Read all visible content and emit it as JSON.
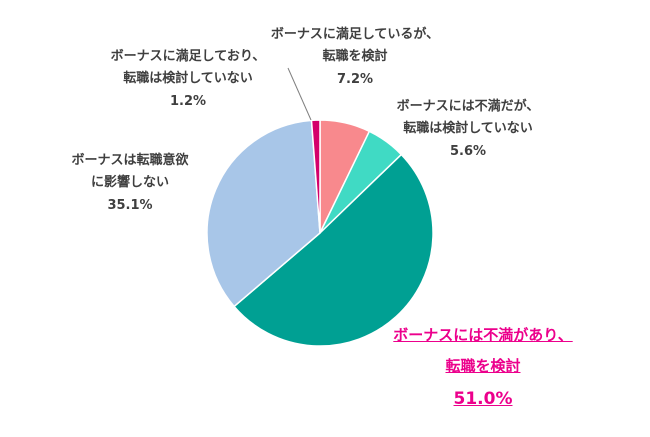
{
  "chart_data": {
    "type": "pie",
    "title": "",
    "start_angle_deg": 0,
    "direction": "clockwise",
    "legend_position": "none",
    "slices": [
      {
        "label": "ボーナスに満足しているが、転職を検討",
        "value": 7.2,
        "color": "#F8898D"
      },
      {
        "label": "ボーナスには不満だが、転職は検討していない",
        "value": 5.6,
        "color": "#40DAC4"
      },
      {
        "label": "ボーナスには不満があり、転職を検討",
        "value": 51.0,
        "color": "#00A093"
      },
      {
        "label": "ボーナスは転職意欲に影響しない",
        "value": 35.1,
        "color": "#A8C6E8"
      },
      {
        "label": "ボーナスに満足しており、転職は検討していない",
        "value": 1.2,
        "color": "#D4006B"
      }
    ]
  },
  "labels": {
    "satisfied_considering": {
      "line1": "ボーナスに満足しているが、",
      "line2": "転職を検討",
      "pct": "7.2%"
    },
    "satisfied_not_considering": {
      "line1": "ボーナスに満足しており、",
      "line2": "転職は検討していない",
      "pct": "1.2%"
    },
    "dissatisfied_not_considering": {
      "line1": "ボーナスには不満だが、",
      "line2": "転職は検討していない",
      "pct": "5.6%"
    },
    "no_influence": {
      "line1": "ボーナスは転職意欲",
      "line2": "に影響しない",
      "pct": "35.1%"
    },
    "dissatisfied_considering": {
      "line1": "ボーナスには不満があり、",
      "line2": "転職を検討",
      "pct": "51.0%"
    }
  },
  "colors": {
    "highlight_text": "#EC008C",
    "label_text": "#3F3F3F",
    "slice_border": "#FFFFFF",
    "leader_line": "#808080"
  }
}
